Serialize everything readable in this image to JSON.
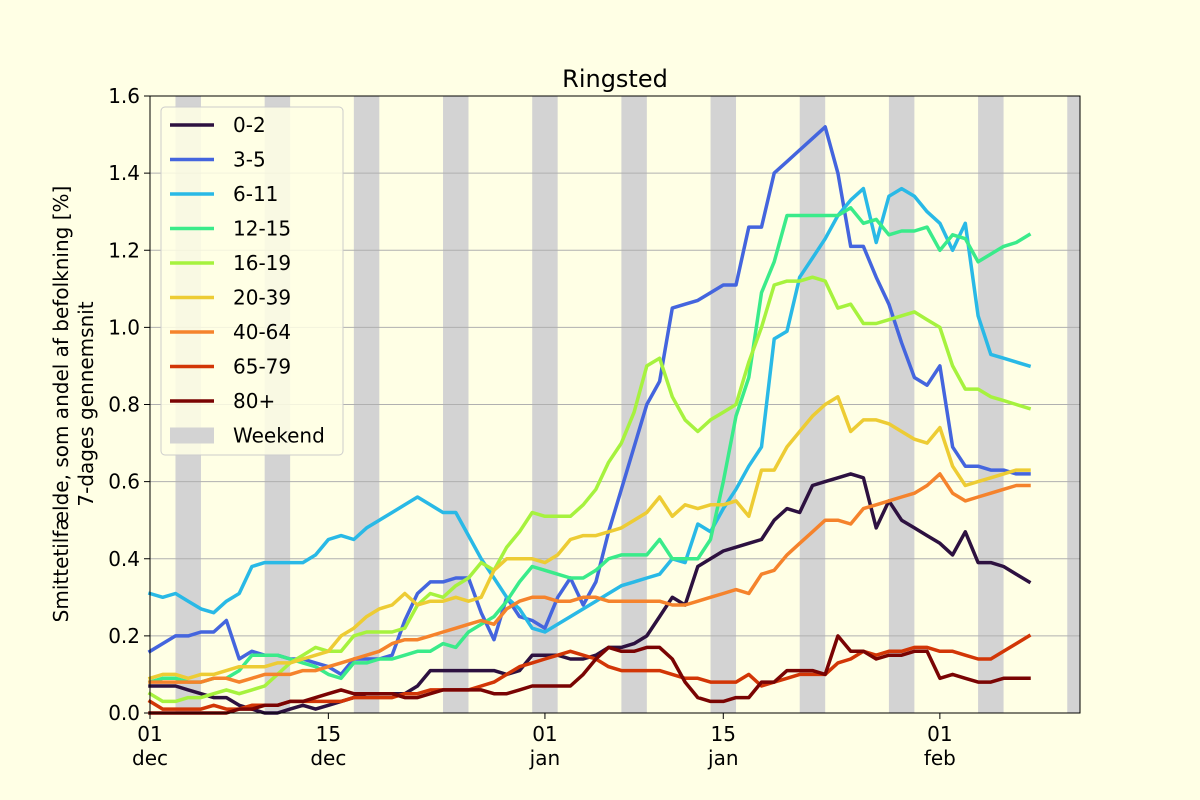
{
  "chart_data": {
    "type": "line",
    "title": "Ringsted",
    "ylabel_line1": "Smittetilfælde, som andel af befolkning [%]",
    "ylabel_line2": "7-dages gennemsnit",
    "ylim": [
      0.0,
      1.6
    ],
    "xlim": [
      "2020-12-01",
      "2021-02-12"
    ],
    "yticks": [
      "0.0",
      "0.2",
      "0.4",
      "0.6",
      "0.8",
      "1.0",
      "1.2",
      "1.4",
      "1.6"
    ],
    "xticks": [
      {
        "date": "2020-12-01",
        "day": "01",
        "month": "dec"
      },
      {
        "date": "2020-12-15",
        "day": "15",
        "month": "dec"
      },
      {
        "date": "2021-01-01",
        "day": "01",
        "month": "jan"
      },
      {
        "date": "2021-01-15",
        "day": "15",
        "month": "jan"
      },
      {
        "date": "2021-02-01",
        "day": "01",
        "month": "feb"
      }
    ],
    "grid": "horizontal",
    "legend_position": "top-left",
    "weekend_label": "Weekend",
    "weekend_color": "#d3d3d3",
    "weekends": [
      [
        "2020-12-03",
        "2020-12-05"
      ],
      [
        "2020-12-10",
        "2020-12-12"
      ],
      [
        "2020-12-17",
        "2020-12-19"
      ],
      [
        "2020-12-24",
        "2020-12-26"
      ],
      [
        "2020-12-31",
        "2021-01-02"
      ],
      [
        "2021-01-07",
        "2021-01-09"
      ],
      [
        "2021-01-14",
        "2021-01-16"
      ],
      [
        "2021-01-21",
        "2021-01-23"
      ],
      [
        "2021-01-28",
        "2021-01-30"
      ],
      [
        "2021-02-04",
        "2021-02-06"
      ],
      [
        "2021-02-11",
        "2021-02-13"
      ]
    ],
    "x": [
      "2020-12-01",
      "2020-12-02",
      "2020-12-03",
      "2020-12-04",
      "2020-12-05",
      "2020-12-06",
      "2020-12-07",
      "2020-12-08",
      "2020-12-09",
      "2020-12-10",
      "2020-12-11",
      "2020-12-12",
      "2020-12-13",
      "2020-12-14",
      "2020-12-15",
      "2020-12-16",
      "2020-12-17",
      "2020-12-18",
      "2020-12-19",
      "2020-12-20",
      "2020-12-21",
      "2020-12-22",
      "2020-12-23",
      "2020-12-24",
      "2020-12-25",
      "2020-12-26",
      "2020-12-27",
      "2020-12-28",
      "2020-12-29",
      "2020-12-30",
      "2020-12-31",
      "2021-01-01",
      "2021-01-02",
      "2021-01-03",
      "2021-01-04",
      "2021-01-05",
      "2021-01-06",
      "2021-01-07",
      "2021-01-08",
      "2021-01-09",
      "2021-01-10",
      "2021-01-11",
      "2021-01-12",
      "2021-01-13",
      "2021-01-14",
      "2021-01-15",
      "2021-01-16",
      "2021-01-17",
      "2021-01-18",
      "2021-01-19",
      "2021-01-20",
      "2021-01-21",
      "2021-01-22",
      "2021-01-23",
      "2021-01-24",
      "2021-01-25",
      "2021-01-26",
      "2021-01-27",
      "2021-01-28",
      "2021-01-29",
      "2021-01-30",
      "2021-01-31",
      "2021-02-01",
      "2021-02-02",
      "2021-02-03",
      "2021-02-04",
      "2021-02-05",
      "2021-02-06",
      "2021-02-07",
      "2021-02-08"
    ],
    "series": [
      {
        "name": "0-2",
        "color": "#2d1140",
        "values": [
          0.07,
          0.07,
          0.07,
          0.06,
          0.05,
          0.04,
          0.04,
          0.02,
          0.01,
          0.0,
          0.0,
          0.01,
          0.02,
          0.01,
          0.02,
          0.03,
          0.04,
          0.05,
          0.05,
          0.05,
          0.05,
          0.07,
          0.11,
          0.11,
          0.11,
          0.11,
          0.11,
          0.11,
          0.1,
          0.11,
          0.15,
          0.15,
          0.15,
          0.14,
          0.14,
          0.15,
          0.17,
          0.17,
          0.18,
          0.2,
          0.25,
          0.3,
          0.28,
          0.38,
          0.4,
          0.42,
          0.43,
          0.44,
          0.45,
          0.5,
          0.53,
          0.52,
          0.59,
          0.6,
          0.61,
          0.62,
          0.61,
          0.48,
          0.55,
          0.5,
          0.48,
          0.46,
          0.44,
          0.41,
          0.47,
          0.39,
          0.39,
          0.38,
          0.36,
          0.34
        ]
      },
      {
        "name": "3-5",
        "color": "#4465de",
        "values": [
          0.16,
          0.18,
          0.2,
          0.2,
          0.21,
          0.21,
          0.24,
          0.14,
          0.16,
          0.15,
          0.15,
          0.14,
          0.14,
          0.13,
          0.12,
          0.1,
          0.14,
          0.14,
          0.14,
          0.15,
          0.24,
          0.31,
          0.34,
          0.34,
          0.35,
          0.35,
          0.26,
          0.19,
          0.3,
          0.25,
          0.24,
          0.22,
          0.3,
          0.35,
          0.28,
          0.34,
          0.47,
          0.58,
          0.69,
          0.8,
          0.86,
          1.05,
          1.06,
          1.07,
          1.09,
          1.11,
          1.11,
          1.26,
          1.26,
          1.4,
          1.43,
          1.46,
          1.49,
          1.52,
          1.4,
          1.21,
          1.21,
          1.13,
          1.06,
          0.96,
          0.87,
          0.85,
          0.9,
          0.69,
          0.64,
          0.64,
          0.63,
          0.63,
          0.62,
          0.62
        ]
      },
      {
        "name": "6-11",
        "color": "#29b9e6",
        "values": [
          0.31,
          0.3,
          0.31,
          0.29,
          0.27,
          0.26,
          0.29,
          0.31,
          0.38,
          0.39,
          0.39,
          0.39,
          0.39,
          0.41,
          0.45,
          0.46,
          0.45,
          0.48,
          0.5,
          0.52,
          0.54,
          0.56,
          0.54,
          0.52,
          0.52,
          0.46,
          0.4,
          0.35,
          0.3,
          0.27,
          0.22,
          0.21,
          0.23,
          0.25,
          0.27,
          0.29,
          0.31,
          0.33,
          0.34,
          0.35,
          0.36,
          0.4,
          0.39,
          0.49,
          0.47,
          0.53,
          0.58,
          0.64,
          0.69,
          0.97,
          0.99,
          1.13,
          1.18,
          1.23,
          1.29,
          1.33,
          1.36,
          1.22,
          1.34,
          1.36,
          1.34,
          1.3,
          1.27,
          1.2,
          1.27,
          1.03,
          0.93,
          0.92,
          0.91,
          0.9
        ]
      },
      {
        "name": "12-15",
        "color": "#3aeb8a",
        "values": [
          0.08,
          0.09,
          0.09,
          0.08,
          0.08,
          0.09,
          0.09,
          0.11,
          0.15,
          0.15,
          0.15,
          0.14,
          0.13,
          0.12,
          0.1,
          0.09,
          0.13,
          0.13,
          0.14,
          0.14,
          0.15,
          0.16,
          0.16,
          0.18,
          0.17,
          0.21,
          0.23,
          0.25,
          0.29,
          0.34,
          0.38,
          0.37,
          0.36,
          0.35,
          0.35,
          0.37,
          0.4,
          0.41,
          0.41,
          0.41,
          0.45,
          0.4,
          0.4,
          0.4,
          0.45,
          0.6,
          0.77,
          0.87,
          1.09,
          1.17,
          1.29,
          1.29,
          1.29,
          1.29,
          1.29,
          1.31,
          1.27,
          1.28,
          1.24,
          1.25,
          1.25,
          1.26,
          1.2,
          1.24,
          1.23,
          1.17,
          1.19,
          1.21,
          1.22,
          1.24
        ]
      },
      {
        "name": "16-19",
        "color": "#a6f23e",
        "values": [
          0.05,
          0.03,
          0.03,
          0.04,
          0.04,
          0.05,
          0.06,
          0.05,
          0.06,
          0.07,
          0.1,
          0.13,
          0.15,
          0.17,
          0.16,
          0.16,
          0.2,
          0.21,
          0.21,
          0.21,
          0.22,
          0.28,
          0.31,
          0.3,
          0.33,
          0.35,
          0.39,
          0.37,
          0.43,
          0.47,
          0.52,
          0.51,
          0.51,
          0.51,
          0.54,
          0.58,
          0.65,
          0.7,
          0.78,
          0.9,
          0.92,
          0.82,
          0.76,
          0.73,
          0.76,
          0.78,
          0.8,
          0.91,
          1.0,
          1.11,
          1.12,
          1.12,
          1.13,
          1.12,
          1.05,
          1.06,
          1.01,
          1.01,
          1.02,
          1.03,
          1.04,
          1.02,
          1.0,
          0.9,
          0.84,
          0.84,
          0.82,
          0.81,
          0.8,
          0.79
        ]
      },
      {
        "name": "20-39",
        "color": "#edcc34",
        "values": [
          0.09,
          0.1,
          0.1,
          0.09,
          0.1,
          0.1,
          0.11,
          0.12,
          0.12,
          0.12,
          0.13,
          0.13,
          0.14,
          0.15,
          0.16,
          0.2,
          0.22,
          0.25,
          0.27,
          0.28,
          0.31,
          0.28,
          0.29,
          0.29,
          0.3,
          0.29,
          0.3,
          0.37,
          0.4,
          0.4,
          0.4,
          0.39,
          0.41,
          0.45,
          0.46,
          0.46,
          0.47,
          0.48,
          0.5,
          0.52,
          0.56,
          0.51,
          0.54,
          0.53,
          0.54,
          0.54,
          0.55,
          0.51,
          0.63,
          0.63,
          0.69,
          0.73,
          0.77,
          0.8,
          0.82,
          0.73,
          0.76,
          0.76,
          0.75,
          0.73,
          0.71,
          0.7,
          0.74,
          0.64,
          0.59,
          0.6,
          0.61,
          0.62,
          0.63,
          0.63
        ]
      },
      {
        "name": "40-64",
        "color": "#f5832c",
        "values": [
          0.08,
          0.08,
          0.08,
          0.08,
          0.08,
          0.09,
          0.09,
          0.08,
          0.09,
          0.1,
          0.1,
          0.1,
          0.11,
          0.11,
          0.12,
          0.13,
          0.14,
          0.15,
          0.16,
          0.18,
          0.19,
          0.19,
          0.2,
          0.21,
          0.22,
          0.23,
          0.24,
          0.23,
          0.27,
          0.29,
          0.3,
          0.3,
          0.29,
          0.29,
          0.3,
          0.3,
          0.29,
          0.29,
          0.29,
          0.29,
          0.29,
          0.28,
          0.28,
          0.29,
          0.3,
          0.31,
          0.32,
          0.31,
          0.36,
          0.37,
          0.41,
          0.44,
          0.47,
          0.5,
          0.5,
          0.49,
          0.53,
          0.54,
          0.55,
          0.56,
          0.57,
          0.59,
          0.62,
          0.57,
          0.55,
          0.56,
          0.57,
          0.58,
          0.59,
          0.59
        ]
      },
      {
        "name": "65-79",
        "color": "#d23606",
        "values": [
          0.03,
          0.01,
          0.01,
          0.01,
          0.01,
          0.02,
          0.01,
          0.01,
          0.02,
          0.02,
          0.02,
          0.03,
          0.03,
          0.03,
          0.03,
          0.03,
          0.04,
          0.04,
          0.04,
          0.04,
          0.05,
          0.05,
          0.06,
          0.06,
          0.06,
          0.06,
          0.07,
          0.08,
          0.1,
          0.12,
          0.13,
          0.14,
          0.15,
          0.16,
          0.15,
          0.14,
          0.12,
          0.11,
          0.11,
          0.11,
          0.11,
          0.1,
          0.09,
          0.09,
          0.08,
          0.08,
          0.08,
          0.1,
          0.07,
          0.08,
          0.09,
          0.1,
          0.1,
          0.1,
          0.13,
          0.14,
          0.16,
          0.15,
          0.16,
          0.16,
          0.17,
          0.17,
          0.16,
          0.16,
          0.15,
          0.14,
          0.14,
          0.16,
          0.18,
          0.2
        ]
      },
      {
        "name": "80+",
        "color": "#7a0403",
        "values": [
          0.0,
          0.0,
          0.0,
          0.0,
          0.0,
          0.0,
          0.0,
          0.01,
          0.01,
          0.02,
          0.02,
          0.03,
          0.03,
          0.04,
          0.05,
          0.06,
          0.05,
          0.05,
          0.05,
          0.05,
          0.04,
          0.04,
          0.05,
          0.06,
          0.06,
          0.06,
          0.06,
          0.05,
          0.05,
          0.06,
          0.07,
          0.07,
          0.07,
          0.07,
          0.1,
          0.14,
          0.17,
          0.16,
          0.16,
          0.17,
          0.17,
          0.14,
          0.08,
          0.04,
          0.03,
          0.03,
          0.04,
          0.04,
          0.08,
          0.08,
          0.11,
          0.11,
          0.11,
          0.1,
          0.2,
          0.16,
          0.16,
          0.14,
          0.15,
          0.15,
          0.16,
          0.16,
          0.09,
          0.1,
          0.09,
          0.08,
          0.08,
          0.09,
          0.09,
          0.09
        ]
      }
    ]
  }
}
